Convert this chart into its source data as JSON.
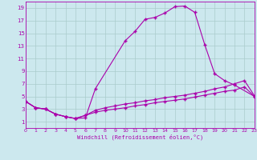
{
  "xlabel": "Windchill (Refroidissement éolien,°C)",
  "bg_color": "#cce8ee",
  "line_color": "#aa00aa",
  "grid_color": "#aacccc",
  "xmin": 0,
  "xmax": 23,
  "ymin": 0,
  "ymax": 20,
  "yticks": [
    1,
    3,
    5,
    7,
    9,
    11,
    13,
    15,
    17,
    19
  ],
  "xticks": [
    0,
    1,
    2,
    3,
    4,
    5,
    6,
    7,
    8,
    9,
    10,
    11,
    12,
    13,
    14,
    15,
    16,
    17,
    18,
    19,
    20,
    21,
    22,
    23
  ],
  "curve1_x": [
    0,
    1,
    2,
    3,
    4,
    5,
    6,
    7,
    10,
    11,
    12,
    13,
    14,
    15,
    16,
    17,
    18,
    19,
    20,
    21,
    23
  ],
  "curve1_y": [
    4.2,
    3.2,
    3.0,
    2.2,
    1.8,
    1.5,
    1.6,
    6.2,
    13.8,
    15.3,
    17.2,
    17.5,
    18.2,
    19.2,
    19.3,
    18.3,
    13.2,
    8.6,
    7.5,
    6.8,
    5.0
  ],
  "curve2_x": [
    0,
    1,
    2,
    3,
    4,
    5,
    6,
    7,
    8,
    9,
    10,
    11,
    12,
    13,
    14,
    15,
    16,
    17,
    18,
    19,
    20,
    21,
    22,
    23
  ],
  "curve2_y": [
    4.2,
    3.2,
    3.0,
    2.2,
    1.8,
    1.5,
    2.0,
    2.8,
    3.2,
    3.5,
    3.8,
    4.0,
    4.3,
    4.5,
    4.8,
    5.0,
    5.2,
    5.5,
    5.8,
    6.2,
    6.5,
    7.0,
    7.5,
    5.1
  ],
  "curve3_x": [
    0,
    1,
    2,
    3,
    4,
    5,
    6,
    7,
    8,
    9,
    10,
    11,
    12,
    13,
    14,
    15,
    16,
    17,
    18,
    19,
    20,
    21,
    22,
    23
  ],
  "curve3_y": [
    4.2,
    3.2,
    3.0,
    2.2,
    1.8,
    1.5,
    2.0,
    2.5,
    2.8,
    3.0,
    3.2,
    3.5,
    3.7,
    4.0,
    4.2,
    4.4,
    4.6,
    4.9,
    5.2,
    5.5,
    5.8,
    6.0,
    6.5,
    5.0
  ]
}
